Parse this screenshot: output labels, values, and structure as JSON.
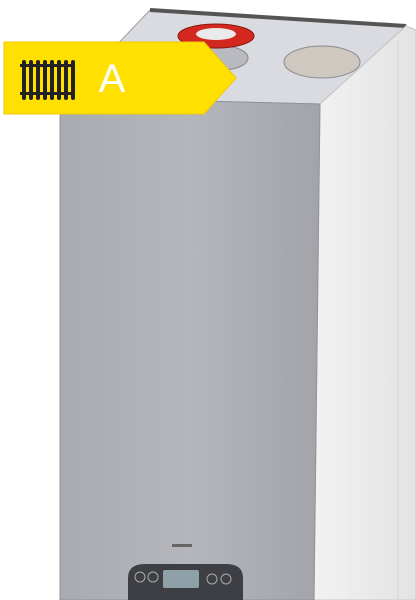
{
  "energy_label": {
    "class": "A"
  }
}
